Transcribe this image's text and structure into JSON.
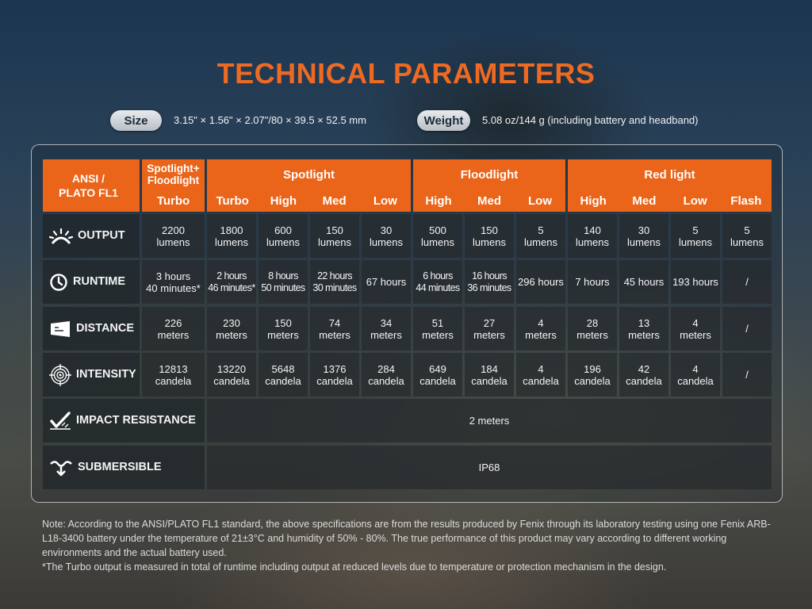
{
  "title": "TECHNICAL PARAMETERS",
  "size": {
    "label": "Size",
    "value": "3.15\" × 1.56\" × 2.07\"/80 × 39.5 × 52.5 mm"
  },
  "weight": {
    "label": "Weight",
    "value": "5.08 oz/144 g (including battery and headband)"
  },
  "table": {
    "standard_label": "ANSI /\nPLATO FL1",
    "groups": [
      {
        "name": "Spotlight+\nFloodlight",
        "modes": [
          "Turbo"
        ]
      },
      {
        "name": "Spotlight",
        "modes": [
          "Turbo",
          "High",
          "Med",
          "Low"
        ]
      },
      {
        "name": "Floodlight",
        "modes": [
          "High",
          "Med",
          "Low"
        ]
      },
      {
        "name": "Red light",
        "modes": [
          "High",
          "Med",
          "Low",
          "Flash"
        ]
      }
    ],
    "rows": {
      "output": {
        "label": "OUTPUT",
        "icon": "light-burst-icon",
        "values": [
          "2200\nlumens",
          "1800\nlumens",
          "600\nlumens",
          "150\nlumens",
          "30\nlumens",
          "500\nlumens",
          "150\nlumens",
          "5\nlumens",
          "140\nlumens",
          "30\nlumens",
          "5\nlumens",
          "5\nlumens"
        ]
      },
      "runtime": {
        "label": "RUNTIME",
        "icon": "clock-icon",
        "values": [
          "3 hours\n40 minutes*",
          "2 hours\n46 minutes*",
          "8 hours\n50 minutes",
          "22 hours\n30 minutes",
          "67 hours",
          "6 hours\n44 minutes",
          "16 hours\n36 minutes",
          "296 hours",
          "7 hours",
          "45 hours",
          "193 hours",
          "/"
        ]
      },
      "distance": {
        "label": "DISTANCE",
        "icon": "beam-distance-icon",
        "values": [
          "226\nmeters",
          "230\nmeters",
          "150\nmeters",
          "74\nmeters",
          "34\nmeters",
          "51\nmeters",
          "27\nmeters",
          "4\nmeters",
          "28\nmeters",
          "13\nmeters",
          "4\nmeters",
          "/"
        ]
      },
      "intensity": {
        "label": "INTENSITY",
        "icon": "target-icon",
        "values": [
          "12813\ncandela",
          "13220\ncandela",
          "5648\ncandela",
          "1376\ncandela",
          "284\ncandela",
          "649\ncandela",
          "184\ncandela",
          "4\ncandela",
          "196\ncandela",
          "42\ncandela",
          "4\ncandela",
          "/"
        ]
      },
      "impact": {
        "label": "IMPACT RESISTANCE",
        "icon": "impact-icon",
        "value": "2 meters"
      },
      "submersible": {
        "label": "SUBMERSIBLE",
        "icon": "water-icon",
        "value": "IP68"
      }
    }
  },
  "notes": {
    "line1": "Note: According to the ANSI/PLATO FL1 standard, the above specifications are from the results produced by Fenix through its laboratory testing using one Fenix ARB-L18-3400 battery under the temperature of 21±3°C and humidity of 50% - 80%. The true performance of this product may vary according to different working environments and the actual battery used.",
    "line2": "*The Turbo output is measured in total of runtime including output at reduced levels due to temperature or protection mechanism in the design."
  },
  "colors": {
    "accent": "#ea6419",
    "title": "#ee6a22"
  }
}
